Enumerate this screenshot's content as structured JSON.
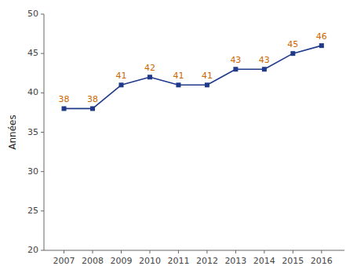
{
  "chart_data": {
    "type": "line",
    "x": [
      2007,
      2008,
      2009,
      2010,
      2011,
      2012,
      2013,
      2014,
      2015,
      2016
    ],
    "values": [
      38,
      38,
      41,
      42,
      41,
      41,
      43,
      43,
      45,
      46
    ],
    "color": "#1F3A8A",
    "marker": "square",
    "ylabel": "Années",
    "xlim": [
      2006.3,
      2016.8
    ],
    "xticks": [
      2007,
      2008,
      2009,
      2010,
      2011,
      2012,
      2013,
      2014,
      2015,
      2016
    ],
    "ylim": [
      20,
      50
    ],
    "yticks": [
      20,
      25,
      30,
      35,
      40,
      45,
      50
    ],
    "grid": false,
    "data_labels": true
  }
}
